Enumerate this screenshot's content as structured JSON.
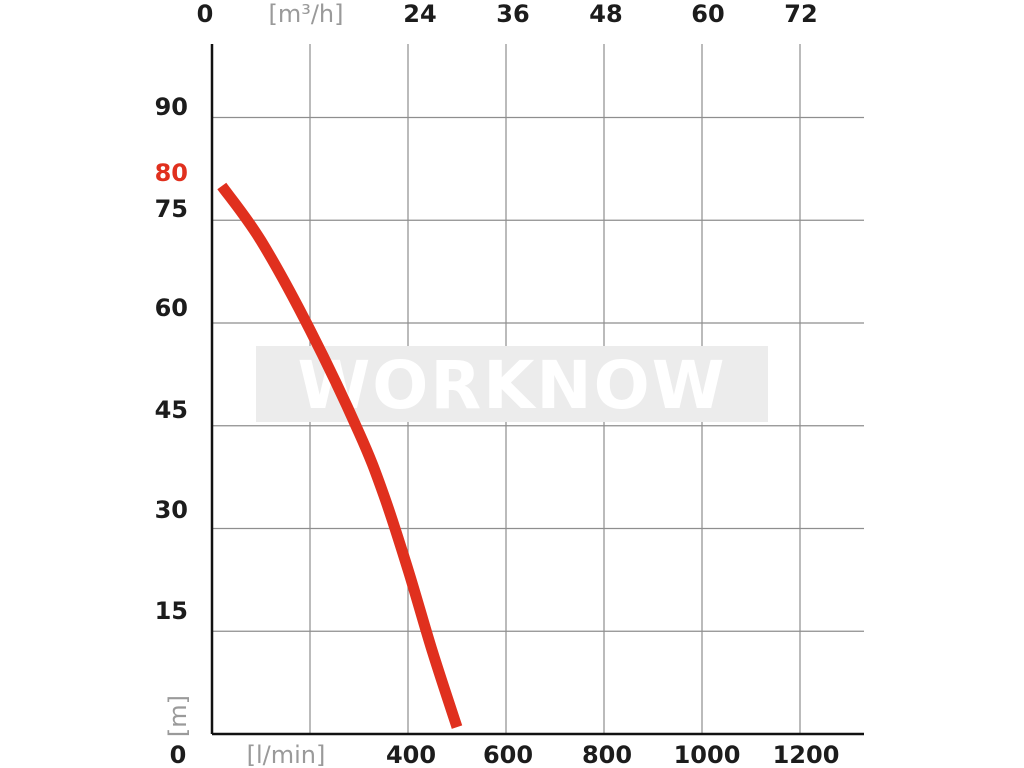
{
  "chart_data": {
    "type": "line",
    "xlabel_bottom": "[l/min]",
    "xlabel_top": "[m³/h]",
    "ylabel": "[m]",
    "x_ticks_bottom": [
      "0",
      "400",
      "600",
      "800",
      "1000",
      "1200"
    ],
    "x_ticks_top": [
      "0",
      "24",
      "36",
      "48",
      "60",
      "72"
    ],
    "y_ticks": [
      "15",
      "30",
      "45",
      "60",
      "75",
      "90"
    ],
    "highlight_y_label": "80",
    "xlim": [
      0,
      1300
    ],
    "ylim": [
      0,
      100
    ],
    "grid": true,
    "series": [
      {
        "color": "#e0301e",
        "x": [
          20,
          100,
          200,
          300,
          350,
          400,
          450,
          500
        ],
        "y": [
          80,
          72,
          59,
          44,
          35,
          24,
          12,
          1
        ]
      }
    ]
  },
  "watermark": {
    "text": "WORKNOW"
  },
  "colors": {
    "curve": "#e0301e",
    "grid": "#8e8e8e",
    "axis": "#111111",
    "muted": "#9a9a9a"
  }
}
